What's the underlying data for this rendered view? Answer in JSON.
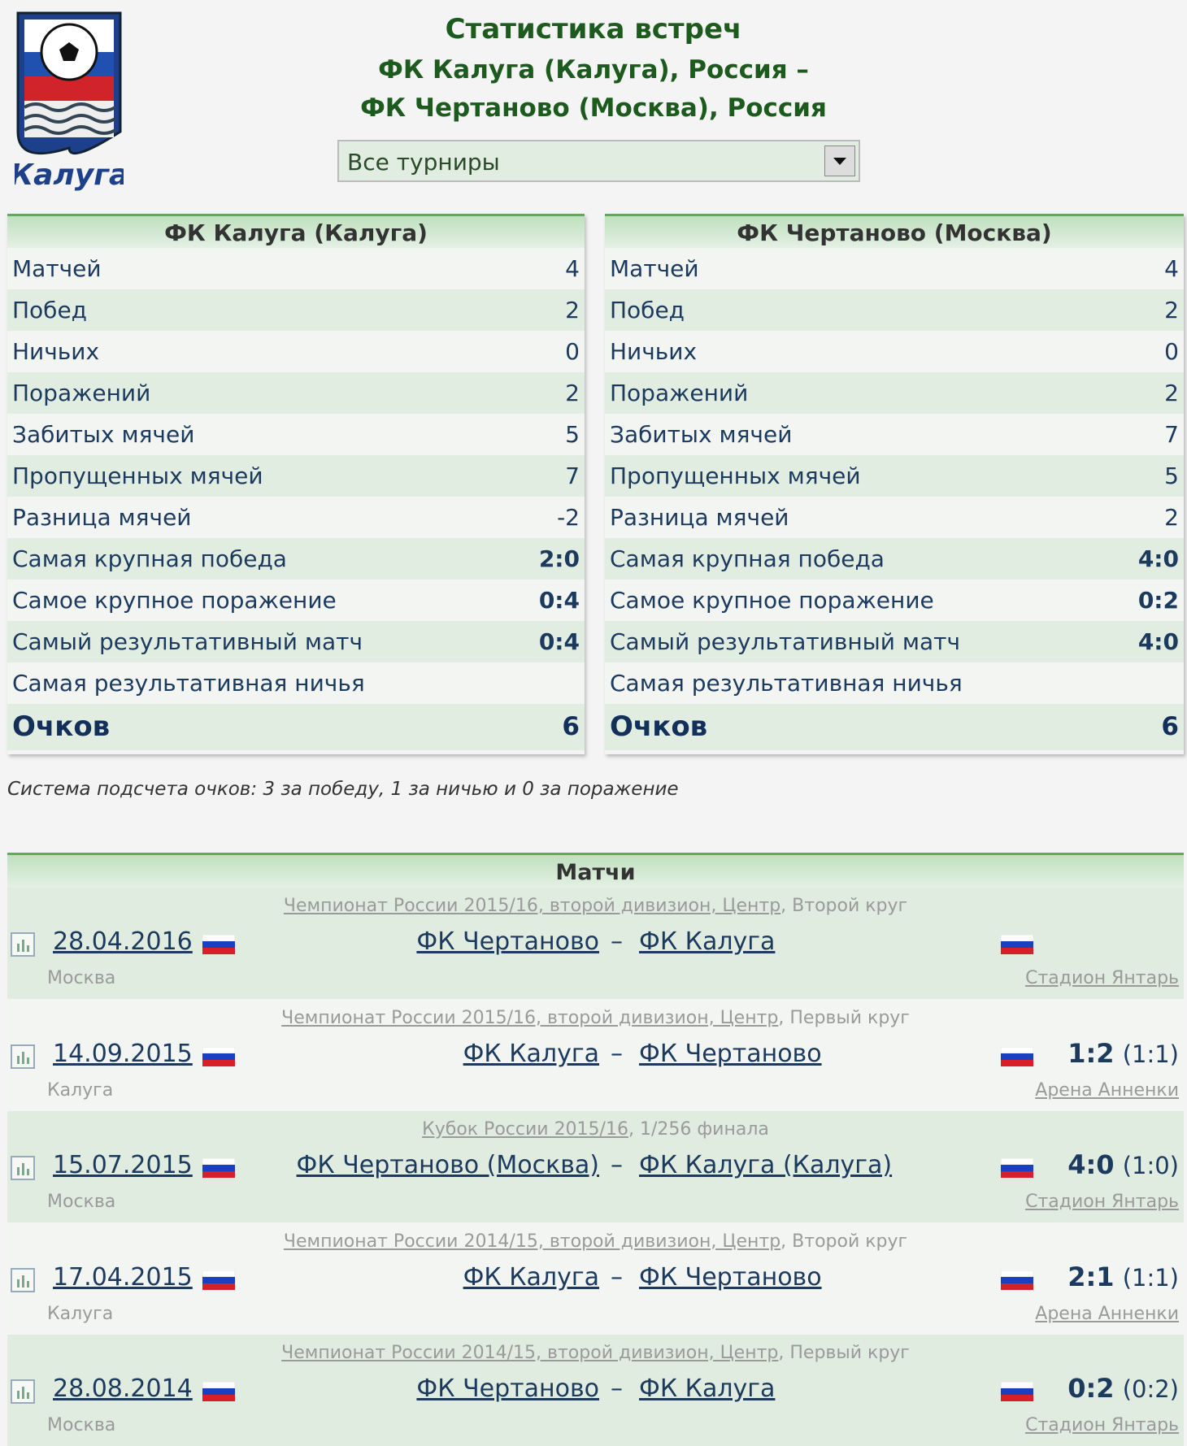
{
  "logo": {
    "text": "Калуга"
  },
  "header": {
    "title": "Статистика встреч",
    "line1": "ФК Калуга (Калуга), Россия –",
    "line2": "ФК Чертаново (Москва), Россия",
    "select": "Все турниры"
  },
  "teams": [
    {
      "name": "ФК Калуга (Калуга)",
      "rows": [
        {
          "label": "Матчей",
          "value": "4"
        },
        {
          "label": "Побед",
          "value": "2"
        },
        {
          "label": "Ничьих",
          "value": "0"
        },
        {
          "label": "Поражений",
          "value": "2"
        },
        {
          "label": "Забитых мячей",
          "value": "5"
        },
        {
          "label": "Пропущенных мячей",
          "value": "7"
        },
        {
          "label": "Разница мячей",
          "value": "-2"
        },
        {
          "label": "Самая крупная победа",
          "value": "2:0"
        },
        {
          "label": "Самое крупное поражение",
          "value": "0:4"
        },
        {
          "label": "Самый результативный матч",
          "value": "0:4"
        },
        {
          "label": "Самая результативная ничья"
        }
      ],
      "points": {
        "label": "Очков",
        "value": "6"
      }
    },
    {
      "name": "ФК Чертаново (Москва)",
      "rows": [
        {
          "label": "Матчей",
          "value": "4"
        },
        {
          "label": "Побед",
          "value": "2"
        },
        {
          "label": "Ничьих",
          "value": "0"
        },
        {
          "label": "Поражений",
          "value": "2"
        },
        {
          "label": "Забитых мячей",
          "value": "7"
        },
        {
          "label": "Пропущенных мячей",
          "value": "5"
        },
        {
          "label": "Разница мячей",
          "value": "2"
        },
        {
          "label": "Самая крупная победа",
          "value": "4:0"
        },
        {
          "label": "Самое крупное поражение",
          "value": "0:2"
        },
        {
          "label": "Самый результативный матч",
          "value": "4:0"
        },
        {
          "label": "Самая результативная ничья"
        }
      ],
      "points": {
        "label": "Очков",
        "value": "6"
      }
    }
  ],
  "note": "Система подсчета очков: 3 за победу, 1 за ничью и 0 за поражение",
  "matches": {
    "title": "Матчи",
    "separator": "–",
    "items": [
      {
        "link": "Чемпионат России 2015/16, второй дивизион, Центр",
        "rest": ", Второй круг",
        "date": "28.04.2016",
        "home": "ФК Чертаново",
        "away": "ФК Калуга",
        "city": "Москва",
        "stadium": "Стадион Янтарь"
      },
      {
        "link": "Чемпионат России 2015/16, второй дивизион, Центр",
        "rest": ", Первый круг",
        "date": "14.09.2015",
        "home": "ФК Калуга",
        "away": "ФК Чертаново",
        "score": "1:2",
        "half": "(1:1)",
        "city": "Калуга",
        "stadium": "Арена Анненки"
      },
      {
        "link": "Кубок России 2015/16",
        "rest": ", 1/256 финала",
        "date": "15.07.2015",
        "home": "ФК Чертаново (Москва)",
        "away": "ФК Калуга (Калуга)",
        "score": "4:0",
        "half": "(1:0)",
        "city": "Москва",
        "stadium": "Стадион Янтарь"
      },
      {
        "link": "Чемпионат России 2014/15, второй дивизион, Центр",
        "rest": ", Второй круг",
        "date": "17.04.2015",
        "home": "ФК Калуга",
        "away": "ФК Чертаново",
        "score": "2:1",
        "half": "(1:1)",
        "city": "Калуга",
        "stadium": "Арена Анненки"
      },
      {
        "link": "Чемпионат России 2014/15, второй дивизион, Центр",
        "rest": ", Первый круг",
        "date": "28.08.2014",
        "home": "ФК Чертаново",
        "away": "ФК Калуга",
        "score": "0:2",
        "half": "(0:2)",
        "city": "Москва",
        "stadium": "Стадион Янтарь"
      }
    ]
  }
}
